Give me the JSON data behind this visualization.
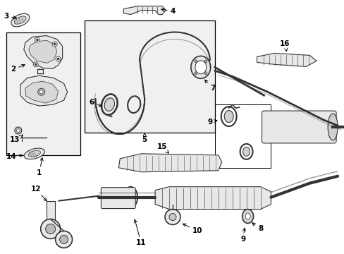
{
  "bg_color": "#ffffff",
  "part_color": "#333333",
  "fill_color": "#e8e8e8",
  "line_color": "#000000",
  "figsize": [
    4.89,
    3.6
  ],
  "dpi": 100
}
